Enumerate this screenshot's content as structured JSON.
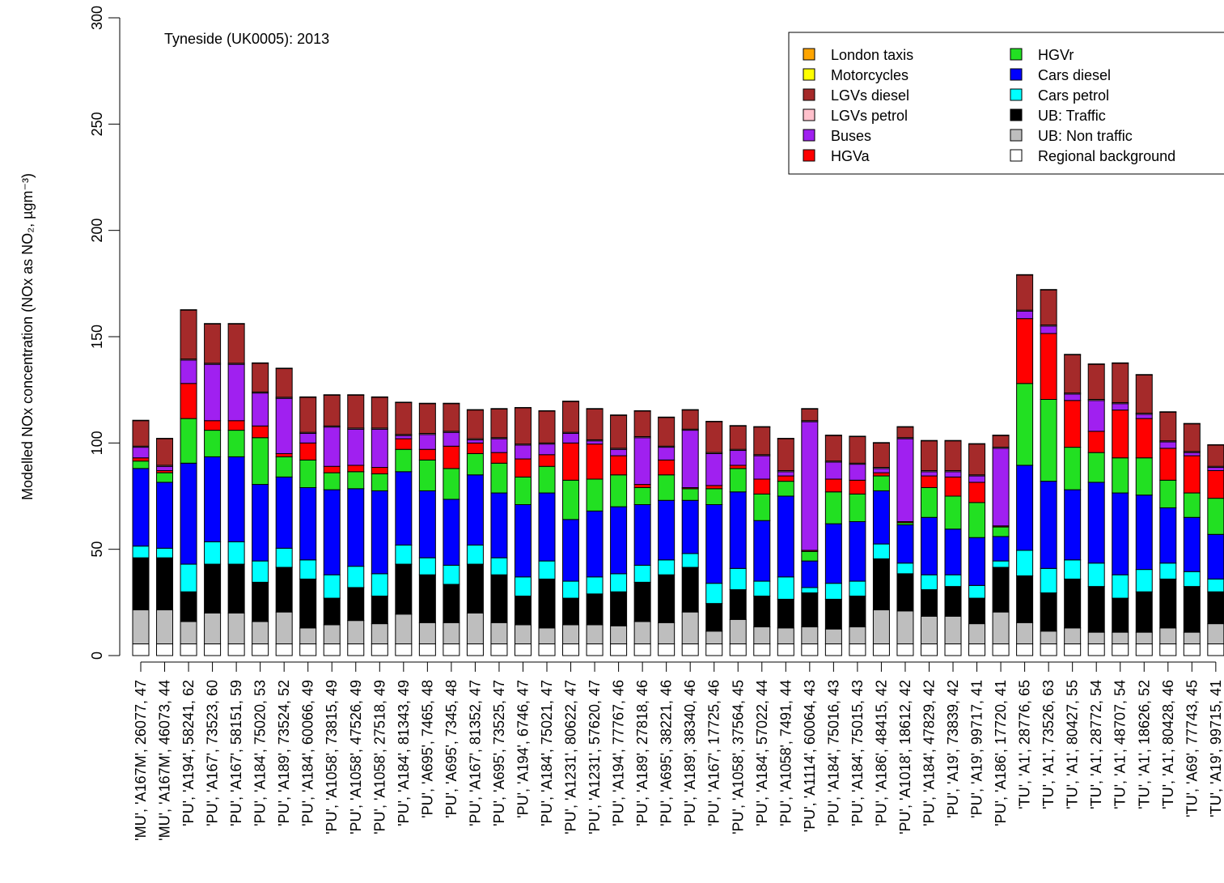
{
  "chart_data": {
    "type": "stacked-bar",
    "annotation": "Tyneside (UK0005): 2013",
    "y_label": "Modelled NOx concentration (NOx as NO₂, µgm⁻³)",
    "ylim": [
      0,
      300
    ],
    "yticks": [
      0,
      50,
      100,
      150,
      200,
      250,
      300
    ],
    "legend_position": "top-right",
    "categories": [
      "'MU', 'A167M', 26077, 47",
      "'MU', 'A167M', 46073, 44",
      "'PU', 'A194', 58241, 62",
      "'PU', 'A167', 73523, 60",
      "'PU', 'A167', 58151, 59",
      "'PU', 'A184', 75020, 53",
      "'PU', 'A189', 73524, 52",
      "'PU', 'A184', 60066, 49",
      "'PU', 'A1058', 73815, 49",
      "'PU', 'A1058', 47526, 49",
      "'PU', 'A1058', 27518, 49",
      "'PU', 'A184', 81343, 49",
      "'PU', 'A695', 7465, 48",
      "'PU', 'A695', 7345, 48",
      "'PU', 'A167', 81352, 47",
      "'PU', 'A695', 73525, 47",
      "'PU', 'A194', 6746, 47",
      "'PU', 'A184', 75021, 47",
      "'PU', 'A1231', 80622, 47",
      "'PU', 'A1231', 57620, 47",
      "'PU', 'A194', 77767, 46",
      "'PU', 'A189', 27818, 46",
      "'PU', 'A695', 38221, 46",
      "'PU', 'A189', 38340, 46",
      "'PU', 'A167', 17725, 46",
      "'PU', 'A1058', 37564, 45",
      "'PU', 'A184', 57022, 44",
      "'PU', 'A1058', 7491, 44",
      "'PU', 'A1114', 60064, 43",
      "'PU', 'A184', 75016, 43",
      "'PU', 'A184', 75015, 43",
      "'PU', 'A186', 48415, 42",
      "'PU', 'A1018', 18612, 42",
      "'PU', 'A184', 47829, 42",
      "'PU', 'A19', 73839, 42",
      "'PU', 'A19', 99717, 41",
      "'PU', 'A186', 17720, 41",
      "'TU', 'A1', 28776, 65",
      "'TU', 'A1', 73526, 63",
      "'TU', 'A1', 80427, 55",
      "'TU', 'A1', 28772, 54",
      "'TU', 'A1', 48707, 54",
      "'TU', 'A1', 18626, 52",
      "'TU', 'A1', 80428, 46",
      "'TU', 'A69', 77743, 45",
      "'TU', 'A19', 99715, 41"
    ],
    "series": [
      {
        "name": "London taxis",
        "color": "#ffa500",
        "values": [
          0,
          0,
          0,
          0,
          0,
          0,
          0,
          0,
          0,
          0,
          0,
          0,
          0,
          0,
          0,
          0,
          0,
          0,
          0,
          0,
          0,
          0,
          0,
          0,
          0,
          0,
          0,
          0,
          0,
          0,
          0,
          0,
          0,
          0,
          0,
          0,
          0,
          0,
          0,
          0,
          0,
          0,
          0,
          0,
          0,
          0
        ]
      },
      {
        "name": "Motorcycles",
        "color": "#ffff00",
        "values": [
          0.2,
          0.2,
          0.2,
          0.2,
          0.2,
          0.2,
          0.2,
          0.2,
          0.2,
          0.2,
          0.2,
          0.2,
          0.2,
          0.2,
          0.2,
          0.2,
          0.2,
          0.2,
          0.2,
          0.2,
          0.2,
          0.2,
          0.2,
          0.2,
          0.2,
          0.2,
          0.2,
          0.2,
          0.2,
          0.2,
          0.2,
          0.2,
          0.2,
          0.2,
          0.2,
          0.2,
          0.2,
          0.2,
          0.2,
          0.2,
          0.2,
          0.2,
          0.2,
          0.2,
          0.2,
          0.2
        ]
      },
      {
        "name": "LGVs diesel",
        "color": "#a52a2a",
        "values": [
          12,
          12.5,
          23,
          18.5,
          18.5,
          13.5,
          13.5,
          16.5,
          14.5,
          15.5,
          14.5,
          15,
          14,
          13,
          13.5,
          13.5,
          17,
          15,
          14.5,
          14.5,
          15.5,
          12,
          13.5,
          9,
          14.5,
          11,
          13,
          15,
          5.5,
          12,
          12.5,
          11.5,
          5,
          14,
          14,
          14.5,
          5.5,
          16.5,
          16.5,
          18,
          16.5,
          18.5,
          18,
          13.5,
          13,
          10
        ]
      },
      {
        "name": "LGVs petrol",
        "color": "#ffc0cb",
        "values": [
          0.5,
          0.5,
          0.5,
          0.5,
          0.5,
          0.5,
          0.5,
          0.5,
          0.5,
          0.5,
          0.5,
          0.5,
          0.5,
          0.5,
          0.5,
          0.5,
          0.5,
          0.5,
          0.5,
          0.5,
          0.5,
          0.5,
          0.5,
          0.5,
          0.5,
          0.5,
          0.5,
          0.5,
          0.5,
          0.5,
          0.5,
          0.5,
          0.5,
          0.5,
          0.5,
          0.5,
          0.5,
          0.5,
          0.5,
          0.5,
          0.5,
          0.5,
          0.5,
          0.5,
          0.5,
          0.5
        ]
      },
      {
        "name": "Buses",
        "color": "#a020f0",
        "values": [
          5,
          2,
          11,
          26.5,
          26.5,
          15.5,
          26,
          4.5,
          18.5,
          17,
          18,
          1.5,
          7,
          6.5,
          1.5,
          6.5,
          6.5,
          5,
          4.5,
          1.5,
          3,
          22,
          6,
          27,
          15,
          7,
          11,
          2,
          60.5,
          8,
          7.5,
          2,
          39,
          2,
          2.5,
          3,
          36.5,
          3.5,
          3.5,
          3,
          14.5,
          3,
          2,
          3,
          1.5,
          1.5
        ]
      },
      {
        "name": "HGVa",
        "color": "#ff0000",
        "values": [
          1.5,
          1,
          16.5,
          4.5,
          4.5,
          5.5,
          1.5,
          8,
          3,
          3,
          3,
          5,
          5,
          10.5,
          5,
          5,
          8.5,
          5.5,
          17.5,
          16.5,
          9,
          1.5,
          7,
          0.5,
          1.5,
          1.5,
          7,
          2.5,
          0.5,
          6,
          6.5,
          1.5,
          0.5,
          5.5,
          9,
          9.5,
          0.5,
          30.5,
          31,
          22,
          10,
          22.5,
          18.5,
          15,
          17.5,
          13
        ]
      },
      {
        "name": "HGVr",
        "color": "#22e022",
        "values": [
          3.5,
          4.5,
          21,
          12.5,
          12.5,
          22,
          9.5,
          13,
          8,
          8,
          8,
          10.5,
          14.5,
          14.5,
          10,
          14,
          13,
          12.5,
          18.5,
          15,
          15,
          8,
          12,
          5.5,
          7.5,
          11,
          12.5,
          7,
          4.5,
          15,
          13,
          7,
          1,
          14,
          15.5,
          16.5,
          4.5,
          38.5,
          38.5,
          20,
          14,
          16.5,
          17.5,
          13,
          11.5,
          17
        ]
      },
      {
        "name": "Cars diesel",
        "color": "#0000ff",
        "values": [
          36.5,
          31,
          47.5,
          40,
          40,
          36,
          33.5,
          34,
          40,
          36.5,
          39,
          34.5,
          31.5,
          31,
          33,
          30.5,
          34,
          32,
          29,
          31,
          31.5,
          28.5,
          28,
          25,
          37,
          36,
          28.5,
          38,
          12.5,
          28,
          28,
          25,
          18,
          27,
          21.5,
          22.5,
          11.5,
          40,
          41,
          33,
          38,
          38.5,
          35,
          26,
          25.5,
          21
        ]
      },
      {
        "name": "Cars petrol",
        "color": "#00ffff",
        "values": [
          5.5,
          4.5,
          13,
          10.5,
          10.5,
          10,
          9,
          9,
          11,
          10,
          10.5,
          9,
          8,
          9,
          9,
          8,
          9,
          8.5,
          8,
          8,
          8.5,
          8,
          7,
          6.5,
          9.5,
          10,
          7,
          10.5,
          2.5,
          7.5,
          7,
          7,
          5,
          7,
          5.5,
          6,
          3,
          12,
          11.5,
          9,
          11,
          11,
          10.5,
          7.5,
          7,
          6
        ]
      },
      {
        "name": "UB: Traffic",
        "color": "#000000",
        "values": [
          24.5,
          24.5,
          14,
          23,
          23,
          18.5,
          21,
          23,
          12.5,
          15.5,
          13,
          23.5,
          22.5,
          18,
          23,
          22.5,
          13.5,
          23,
          12.5,
          14.5,
          16,
          18.5,
          22.5,
          21,
          13,
          14,
          14.5,
          13.5,
          16,
          14,
          14.5,
          24,
          17.5,
          12.5,
          14,
          12,
          21,
          22,
          18,
          23,
          21.5,
          16,
          19,
          23,
          21.5,
          15
        ]
      },
      {
        "name": "UB: Non traffic",
        "color": "#bebebe",
        "values": [
          16,
          16,
          10.5,
          14.5,
          14.5,
          10.5,
          15,
          7.5,
          9,
          11,
          9.5,
          14,
          10,
          10,
          14.5,
          10,
          9,
          7.5,
          9,
          9,
          8.5,
          10.5,
          10,
          15,
          6,
          11.5,
          8,
          7.5,
          8,
          7,
          8,
          16,
          15.5,
          13,
          13,
          9.5,
          15,
          10,
          6,
          7.5,
          5.5,
          5.5,
          5.5,
          7.5,
          5.5,
          9.5
        ]
      },
      {
        "name": "Regional background",
        "color": "#ffffff",
        "values": [
          5.5,
          5.5,
          5.5,
          5.5,
          5.5,
          5.5,
          5.5,
          5.5,
          5.5,
          5.5,
          5.5,
          5.5,
          5.5,
          5.5,
          5.5,
          5.5,
          5.5,
          5.5,
          5.5,
          5.5,
          5.5,
          5.5,
          5.5,
          5.5,
          5.5,
          5.5,
          5.5,
          5.5,
          5.5,
          5.5,
          5.5,
          5.5,
          5.5,
          5.5,
          5.5,
          5.5,
          5.5,
          5.5,
          5.5,
          5.5,
          5.5,
          5.5,
          5.5,
          5.5,
          5.5,
          5.5
        ]
      }
    ]
  }
}
